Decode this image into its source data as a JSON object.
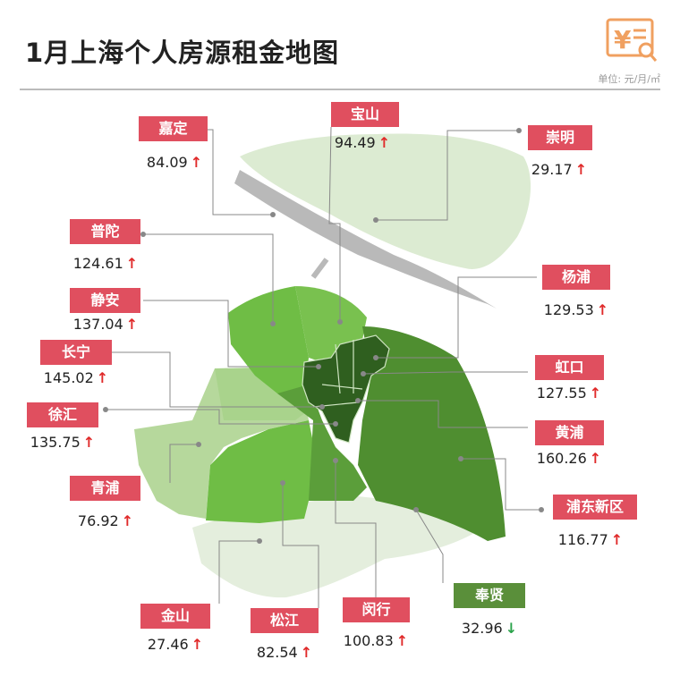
{
  "title": "1月上海个人房源租金地图",
  "unit": "单位: 元/月/㎡",
  "colors": {
    "up_label": "#e04f5f",
    "down_label": "#5a8f3a",
    "up_arrow": "#e02a2a",
    "down_arrow": "#2aa24a",
    "logo": "#f0a060"
  },
  "districts": [
    {
      "name": "嘉定",
      "value": "84.09",
      "trend": "up",
      "arrow": "↑"
    },
    {
      "name": "宝山",
      "value": "94.49",
      "trend": "up",
      "arrow": "↑"
    },
    {
      "name": "崇明",
      "value": "29.17",
      "trend": "up",
      "arrow": "↑"
    },
    {
      "name": "普陀",
      "value": "124.61",
      "trend": "up",
      "arrow": "↑"
    },
    {
      "name": "静安",
      "value": "137.04",
      "trend": "up",
      "arrow": "↑"
    },
    {
      "name": "长宁",
      "value": "145.02",
      "trend": "up",
      "arrow": "↑"
    },
    {
      "name": "徐汇",
      "value": "135.75",
      "trend": "up",
      "arrow": "↑"
    },
    {
      "name": "青浦",
      "value": "76.92",
      "trend": "up",
      "arrow": "↑"
    },
    {
      "name": "金山",
      "value": "27.46",
      "trend": "up",
      "arrow": "↑"
    },
    {
      "name": "松江",
      "value": "82.54",
      "trend": "up",
      "arrow": "↑"
    },
    {
      "name": "闵行",
      "value": "100.83",
      "trend": "up",
      "arrow": "↑"
    },
    {
      "name": "奉贤",
      "value": "32.96",
      "trend": "down",
      "arrow": "↓"
    },
    {
      "name": "浦东新区",
      "value": "116.77",
      "trend": "down_none",
      "arrow": "↑"
    },
    {
      "name": "黄浦",
      "value": "160.26",
      "trend": "up",
      "arrow": "↑"
    },
    {
      "name": "虹口",
      "value": "127.55",
      "trend": "up",
      "arrow": "↑"
    },
    {
      "name": "杨浦",
      "value": "129.53",
      "trend": "up",
      "arrow": "↑"
    }
  ]
}
